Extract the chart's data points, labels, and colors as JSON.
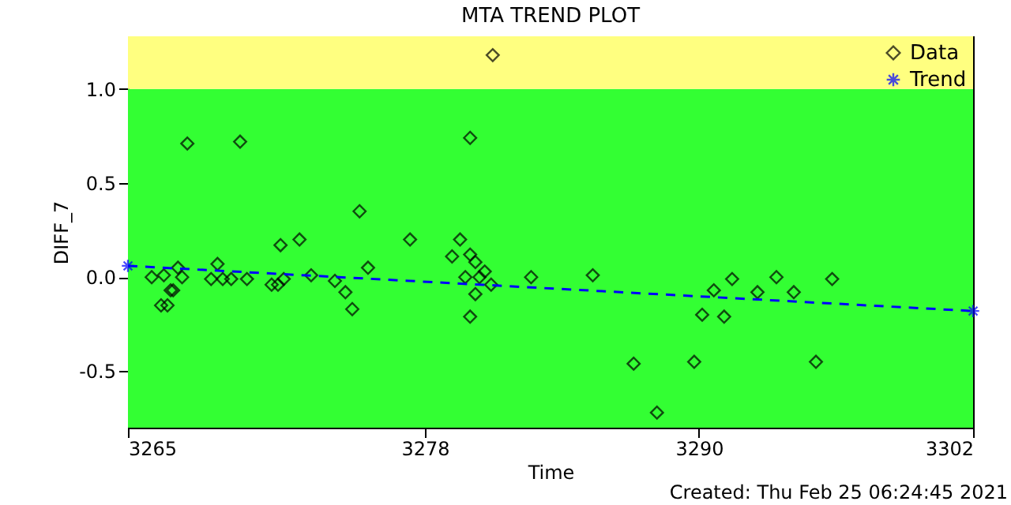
{
  "chart_data": {
    "type": "scatter",
    "title": "MTA TREND PLOT",
    "xlabel": "Time",
    "ylabel": "DIFF_7",
    "annotations": [
      "Created: Thu Feb 25 06:24:45 2021"
    ],
    "xlim": [
      3265,
      3302
    ],
    "xticks": [
      3265,
      3278,
      3290,
      3302
    ],
    "ylim": [
      -0.8,
      1.28
    ],
    "yticks": [
      -0.5,
      {
        "value": 0,
        "label": "0.0"
      },
      0.5,
      {
        "value": 1,
        "label": "1.0"
      }
    ],
    "bands": [
      {
        "axis": "y",
        "from": -0.8,
        "to": 1.0,
        "color": "#33ff33"
      },
      {
        "axis": "y",
        "from": 1.0,
        "to": 1.28,
        "color": "#ffff80"
      }
    ],
    "legend": "top right",
    "grid": false,
    "series": [
      {
        "name": "Data",
        "type": "scatter",
        "marker": "diamond",
        "color": "#000000",
        "x": [
          3266.04,
          3266.45,
          3266.57,
          3266.73,
          3266.87,
          3266.98,
          3267.19,
          3267.37,
          3267.6,
          3268.64,
          3268.92,
          3269.15,
          3269.52,
          3269.91,
          3270.21,
          3271.29,
          3271.57,
          3271.68,
          3271.82,
          3272.51,
          3273.02,
          3274.06,
          3274.52,
          3274.82,
          3275.14,
          3275.51,
          3277.35,
          3279.19,
          3279.54,
          3279.77,
          3279.98,
          3279.98,
          3279.98,
          3280.21,
          3280.21,
          3280.39,
          3280.62,
          3280.9,
          3280.97,
          3282.65,
          3285.35,
          3287.14,
          3288.16,
          3289.79,
          3290.14,
          3290.65,
          3291.1,
          3291.45,
          3292.56,
          3293.39,
          3294.15,
          3295.12,
          3295.83
        ],
        "values": [
          0,
          -0.15,
          0.01,
          -0.15,
          -0.07,
          -0.07,
          0.05,
          0,
          0.71,
          -0.01,
          0.07,
          -0.01,
          -0.01,
          0.72,
          -0.01,
          -0.04,
          -0.04,
          0.17,
          -0.01,
          0.2,
          0.01,
          -0.02,
          -0.08,
          -0.17,
          0.35,
          0.05,
          0.2,
          0.11,
          0.2,
          0,
          0.12,
          0.74,
          -0.21,
          0.08,
          -0.09,
          0,
          0.03,
          -0.04,
          1.18,
          0,
          0.01,
          -0.46,
          -0.72,
          -0.45,
          -0.2,
          -0.07,
          -0.21,
          -0.01,
          -0.08,
          0,
          -0.08,
          -0.45,
          -0.01
        ]
      },
      {
        "name": "Trend",
        "type": "line",
        "marker": "cross",
        "line_style": "dashed",
        "color": "#0000ff",
        "x": [
          3265,
          3302
        ],
        "values": [
          0.06,
          -0.18
        ]
      }
    ]
  }
}
